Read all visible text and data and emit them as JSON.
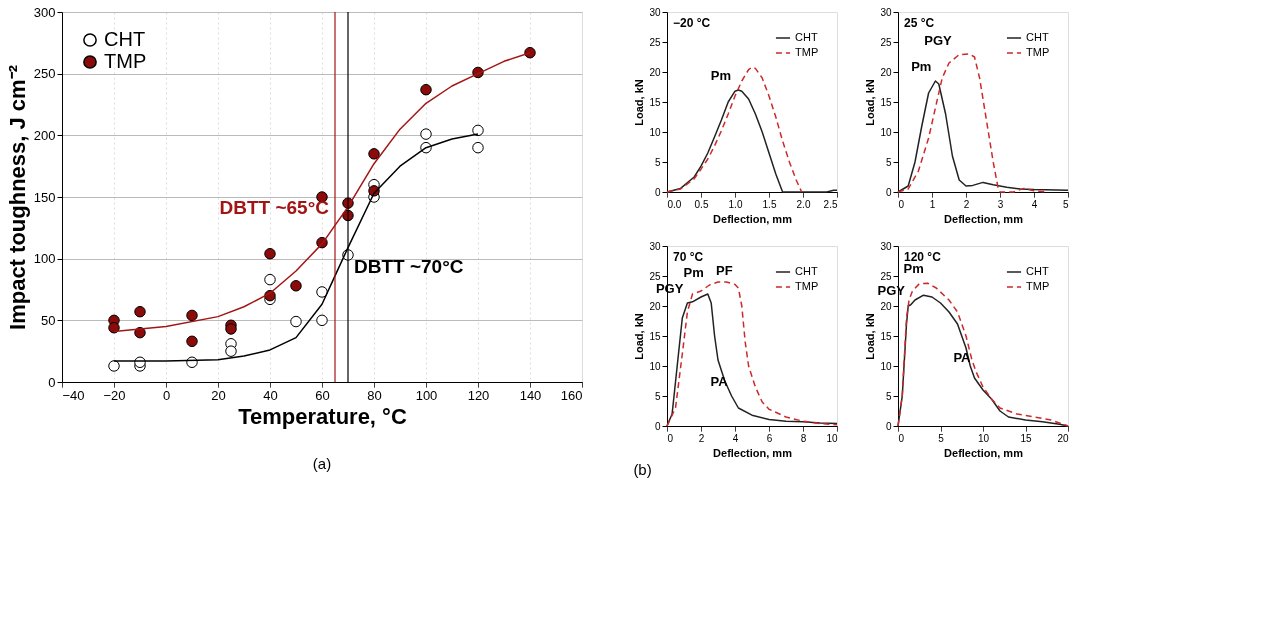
{
  "chart_data": [
    {
      "type": "scatter",
      "xlabel": "Temperature, °C",
      "ylabel": "Impact toughness, J cm⁻²",
      "xlim": [
        -40,
        160
      ],
      "xticks": [
        -40,
        -20,
        0,
        20,
        40,
        60,
        80,
        100,
        120,
        140,
        160
      ],
      "ylim": [
        0,
        300
      ],
      "yticks": [
        0,
        50,
        100,
        150,
        200,
        250,
        300
      ],
      "grid": true,
      "legend": "top left",
      "marker": "circle",
      "annotations": [
        "(a)"
      ],
      "ref_lines": [
        {
          "axis": "x",
          "value": 65,
          "label": "DBTT ~65°C",
          "color": "#a31515"
        },
        {
          "axis": "x",
          "value": 70,
          "label": "DBTT ~70°C",
          "color": "#000000"
        }
      ],
      "series": [
        {
          "name": "CHT",
          "color": "#ffffff",
          "x": [
            -20,
            -10,
            -10,
            10,
            25,
            25,
            40,
            40,
            50,
            60,
            60,
            70,
            80,
            80,
            100,
            100,
            120,
            120
          ],
          "values": [
            13,
            13,
            16,
            16,
            31,
            25,
            83,
            67,
            49,
            73,
            50,
            103,
            160,
            150,
            201,
            190,
            204,
            190
          ]
        },
        {
          "name": "TMP",
          "color": "#8b0a0a",
          "x": [
            -20,
            -20,
            -10,
            -10,
            10,
            10,
            25,
            25,
            40,
            40,
            50,
            60,
            60,
            70,
            70,
            80,
            80,
            100,
            120,
            140
          ],
          "values": [
            50,
            44,
            57,
            40,
            54,
            33,
            46,
            43,
            104,
            70,
            78,
            150,
            113,
            145,
            135,
            185,
            155,
            237,
            251,
            267
          ]
        },
        {
          "type": "line",
          "color": "#000000",
          "marker": "none",
          "line_style": "solid",
          "x": [
            -20,
            0,
            20,
            30,
            40,
            50,
            60,
            65,
            70,
            80,
            90,
            100,
            110,
            120
          ],
          "values": [
            17,
            17,
            18,
            21,
            26,
            36,
            63,
            86,
            109,
            153,
            175,
            190,
            197,
            201
          ]
        },
        {
          "type": "line",
          "color": "#a31515",
          "marker": "none",
          "line_style": "solid",
          "x": [
            -20,
            0,
            20,
            30,
            40,
            50,
            60,
            65,
            70,
            80,
            90,
            100,
            110,
            120,
            130,
            140
          ],
          "values": [
            41,
            45,
            53,
            61,
            72,
            90,
            112,
            127,
            142,
            177,
            205,
            226,
            240,
            250,
            260,
            267
          ]
        }
      ]
    },
    {
      "type": "line",
      "title": "−20 °C",
      "xlabel": "Deflection, mm",
      "ylabel": "Load, kN",
      "xlim": [
        0,
        2.5
      ],
      "xticks": [
        {
          "value": 0,
          "label": "0.0"
        },
        0.5,
        {
          "value": 1,
          "label": "1.0"
        },
        1.5,
        {
          "value": 2,
          "label": "2.0"
        },
        2.5
      ],
      "ylim": [
        0,
        30
      ],
      "yticks": [
        0,
        5,
        10,
        15,
        20,
        25,
        30
      ],
      "legend": "top right",
      "annotations": [
        "(b)",
        {
          "text": "Pm",
          "x": 1.0,
          "y": 17
        }
      ],
      "series": [
        {
          "name": "CHT",
          "color": "#222222",
          "line_style": "solid",
          "x": [
            0,
            0.2,
            0.4,
            0.5,
            0.6,
            0.7,
            0.8,
            0.9,
            1.0,
            1.05,
            1.1,
            1.2,
            1.3,
            1.4,
            1.5,
            1.6,
            1.7,
            2.0,
            2.35,
            2.45,
            2.5
          ],
          "values": [
            0,
            0.6,
            2.5,
            4.3,
            6.5,
            9.2,
            12,
            15,
            16.8,
            17,
            16.8,
            15.5,
            13,
            10,
            6.5,
            3,
            0,
            0,
            0,
            0.3,
            0.3
          ]
        },
        {
          "name": "TMP",
          "color": "#cc2a2a",
          "line_style": "dashed",
          "x": [
            0,
            0.2,
            0.4,
            0.5,
            0.6,
            0.7,
            0.8,
            0.9,
            1.0,
            1.1,
            1.2,
            1.25,
            1.3,
            1.4,
            1.5,
            1.6,
            1.7,
            1.8,
            1.9,
            1.98
          ],
          "values": [
            0,
            0.5,
            2.2,
            3.8,
            5.5,
            7.7,
            10.2,
            13,
            16,
            18.5,
            20.4,
            20.8,
            20.6,
            19,
            16,
            12.5,
            8.5,
            5,
            2,
            0
          ]
        }
      ]
    },
    {
      "type": "line",
      "title": "25 °C",
      "xlabel": "Deflection, mm",
      "ylabel": "Load, kN",
      "xlim": [
        0,
        5
      ],
      "xticks": [
        0,
        1,
        2,
        3,
        4,
        5
      ],
      "ylim": [
        0,
        30
      ],
      "yticks": [
        0,
        5,
        10,
        15,
        20,
        25,
        30
      ],
      "legend": "top right",
      "annotations": [
        {
          "text": "PGY",
          "x": 1.7,
          "y": 22.8
        },
        {
          "text": "Pm",
          "x": 1.1,
          "y": 18.5
        }
      ],
      "series": [
        {
          "name": "CHT",
          "color": "#222222",
          "line_style": "solid",
          "x": [
            0,
            0.3,
            0.5,
            0.7,
            0.9,
            1.1,
            1.2,
            1.4,
            1.6,
            1.8,
            2.0,
            2.2,
            2.5,
            2.8,
            3.2,
            3.6,
            4.0,
            5.0
          ],
          "values": [
            0,
            1,
            5,
            11,
            16.5,
            18.5,
            18,
            13,
            6,
            2,
            1,
            1.1,
            1.6,
            1.2,
            0.8,
            0.5,
            0.4,
            0.3
          ]
        },
        {
          "name": "TMP",
          "color": "#cc2a2a",
          "line_style": "dashed",
          "x": [
            0,
            0.3,
            0.6,
            0.9,
            1.1,
            1.3,
            1.5,
            1.8,
            2.1,
            2.25,
            2.4,
            2.6,
            2.8,
            2.95,
            3.0,
            3.4,
            3.7,
            4.0,
            4.4
          ],
          "values": [
            0,
            0.5,
            3.5,
            9,
            14,
            19,
            21.5,
            22.9,
            23,
            22.5,
            19,
            12,
            5,
            0.5,
            0,
            0,
            0.6,
            0.2,
            0
          ]
        }
      ]
    },
    {
      "type": "line",
      "title": "70 °C",
      "xlabel": "Deflection, mm",
      "ylabel": "Load, kN",
      "xlim": [
        0,
        10
      ],
      "xticks": [
        0,
        2,
        4,
        6,
        8,
        10
      ],
      "ylim": [
        0,
        30
      ],
      "yticks": [
        0,
        5,
        10,
        15,
        20,
        25,
        30
      ],
      "legend": "top right",
      "annotations": [
        {
          "text": "PGY",
          "x": 1.2,
          "y": 20.5
        },
        {
          "text": "Pm",
          "x": 2.4,
          "y": 23.2
        },
        {
          "text": "PF",
          "x": 4.1,
          "y": 23.5
        },
        {
          "text": "PA",
          "x": 3.8,
          "y": 5
        }
      ],
      "series": [
        {
          "name": "CHT",
          "color": "#222222",
          "line_style": "solid",
          "x": [
            0,
            0.3,
            0.6,
            0.9,
            1.2,
            1.5,
            2.0,
            2.4,
            2.6,
            2.8,
            3.0,
            3.4,
            3.8,
            4.2,
            5,
            6,
            7,
            8,
            9,
            10
          ],
          "values": [
            0,
            2,
            10,
            18,
            20.5,
            20.7,
            21.5,
            22,
            20.5,
            15,
            11,
            7.5,
            5,
            3,
            1.8,
            1.1,
            0.8,
            0.7,
            0.5,
            0.4
          ]
        },
        {
          "name": "TMP",
          "color": "#cc2a2a",
          "line_style": "dashed",
          "x": [
            0,
            0.5,
            0.9,
            1.2,
            1.5,
            2,
            2.5,
            3,
            3.5,
            4,
            4.2,
            4.4,
            4.6,
            4.8,
            5.2,
            5.6,
            6,
            7,
            8,
            9,
            10
          ],
          "values": [
            0,
            3,
            12,
            19,
            22,
            22.5,
            23.5,
            24,
            24,
            23.6,
            23,
            20,
            14,
            10,
            6.5,
            4,
            2.8,
            1.5,
            0.8,
            0.4,
            0.2
          ]
        }
      ]
    },
    {
      "type": "line",
      "title": "120 °C",
      "xlabel": "Deflection, mm",
      "ylabel": "Load, kN",
      "xlim": [
        0,
        20
      ],
      "xticks": [
        0,
        5,
        10,
        15,
        20
      ],
      "ylim": [
        0,
        30
      ],
      "yticks": [
        0,
        5,
        10,
        15,
        20,
        25,
        30
      ],
      "legend": "top right",
      "annotations": [
        {
          "text": "PGY",
          "x": 1.3,
          "y": 20.2
        },
        {
          "text": "Pm",
          "x": 3.5,
          "y": 23.8
        },
        {
          "text": "PA",
          "x": 9,
          "y": 9
        }
      ],
      "series": [
        {
          "name": "CHT",
          "color": "#222222",
          "line_style": "solid",
          "x": [
            0,
            0.5,
            1,
            1.2,
            1.5,
            2,
            3,
            4,
            5,
            6,
            7,
            8,
            8.5,
            9,
            10,
            11,
            12,
            13,
            15,
            17,
            19,
            20
          ],
          "values": [
            0,
            5,
            17,
            20,
            20.2,
            21,
            21.8,
            21.5,
            20.5,
            19,
            17,
            13,
            10,
            8,
            6,
            4.5,
            2.5,
            1.5,
            1,
            0.7,
            0.3,
            0
          ]
        },
        {
          "name": "TMP",
          "color": "#cc2a2a",
          "line_style": "dashed",
          "x": [
            0,
            0.5,
            1,
            1.3,
            1.7,
            2.5,
            3.5,
            4.5,
            6,
            7,
            8,
            8.7,
            9.2,
            10,
            11,
            12,
            14,
            16,
            18,
            20
          ],
          "values": [
            0,
            5,
            18,
            21,
            22.5,
            23.7,
            23.8,
            23,
            21,
            19,
            15,
            11,
            9,
            6.5,
            4.5,
            3,
            2,
            1.5,
            1,
            0
          ]
        }
      ]
    }
  ]
}
